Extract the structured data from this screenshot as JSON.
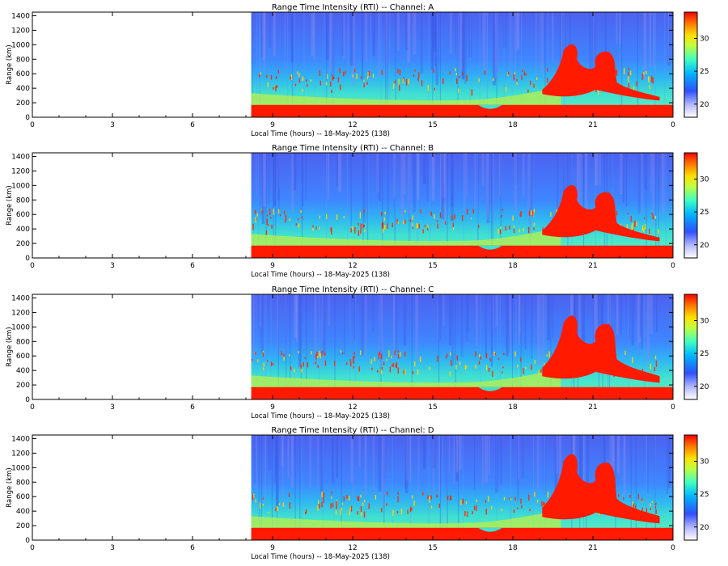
{
  "chart_data": [
    {
      "type": "heatmap",
      "title": "Range Time Intensity (RTI) -- Channel: A",
      "xlabel": "Local Time (hours) -- 18-May-2025 (138)",
      "ylabel": "Range (km)",
      "xlim": [
        0,
        24
      ],
      "ylim": [
        0,
        1450
      ],
      "xticks": [
        "0",
        "3",
        "6",
        "9",
        "12",
        "15",
        "18",
        "21",
        "0"
      ],
      "yticks": [
        "0",
        "200",
        "400",
        "600",
        "800",
        "1000",
        "1200",
        "1400"
      ],
      "colorbar": {
        "ticks": [
          "20",
          "25",
          "30"
        ],
        "range": [
          18,
          34
        ]
      },
      "data_start_hour": 8.2
    },
    {
      "type": "heatmap",
      "title": "Range Time Intensity (RTI) -- Channel: B",
      "xlabel": "Local Time (hours) -- 18-May-2025 (138)",
      "ylabel": "Range (km)",
      "xlim": [
        0,
        24
      ],
      "ylim": [
        0,
        1450
      ],
      "xticks": [
        "0",
        "3",
        "6",
        "9",
        "12",
        "15",
        "18",
        "21",
        "0"
      ],
      "yticks": [
        "0",
        "200",
        "400",
        "600",
        "800",
        "1000",
        "1200",
        "1400"
      ],
      "colorbar": {
        "ticks": [
          "20",
          "25",
          "30"
        ],
        "range": [
          18,
          34
        ]
      },
      "data_start_hour": 8.2
    },
    {
      "type": "heatmap",
      "title": "Range Time Intensity (RTI) -- Channel: C",
      "xlabel": "Local Time (hours) -- 18-May-2025 (138)",
      "ylabel": "Range (km)",
      "xlim": [
        0,
        24
      ],
      "ylim": [
        0,
        1450
      ],
      "xticks": [
        "0",
        "3",
        "6",
        "9",
        "12",
        "15",
        "18",
        "21",
        "0"
      ],
      "yticks": [
        "0",
        "200",
        "400",
        "600",
        "800",
        "1000",
        "1200",
        "1400"
      ],
      "colorbar": {
        "ticks": [
          "20",
          "25",
          "30"
        ],
        "range": [
          18,
          34
        ]
      },
      "data_start_hour": 8.2
    },
    {
      "type": "heatmap",
      "title": "Range Time Intensity (RTI) -- Channel: D",
      "xlabel": "Local Time (hours) -- 18-May-2025 (138)",
      "ylabel": "Range (km)",
      "xlim": [
        0,
        24
      ],
      "ylim": [
        0,
        1450
      ],
      "xticks": [
        "0",
        "3",
        "6",
        "9",
        "12",
        "15",
        "18",
        "21",
        "0"
      ],
      "yticks": [
        "0",
        "200",
        "400",
        "600",
        "800",
        "1000",
        "1200",
        "1400"
      ],
      "colorbar": {
        "ticks": [
          "20",
          "25",
          "30"
        ],
        "range": [
          18,
          34
        ]
      },
      "data_start_hour": 8.2
    }
  ]
}
